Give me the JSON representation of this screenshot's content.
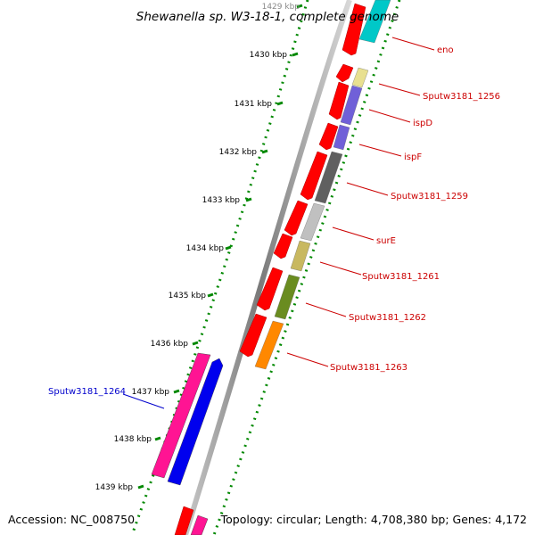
{
  "title": "Shewanella sp. W3-18-1, complete genome",
  "accession": "Accession: NC_008750",
  "summary": "Topology: circular; Length: 4,708,380 bp; Genes: 4,172",
  "ticks": [
    "1429 kbp",
    "1430 kbp",
    "1431 kbp",
    "1432 kbp",
    "1433 kbp",
    "1434 kbp",
    "1435 kbp",
    "1436 kbp",
    "1437 kbp",
    "1438 kbp",
    "1439 kbp"
  ],
  "genes": [
    {
      "label": "eno",
      "color": "#00c8c8",
      "label_color": "#cc0000"
    },
    {
      "label": "Sputw3181_1256",
      "color": "#e8e090",
      "label_color": "#cc0000"
    },
    {
      "label": "ispD",
      "color": "#7060d8",
      "label_color": "#cc0000"
    },
    {
      "label": "ispF",
      "color": "#7060d8",
      "label_color": "#cc0000"
    },
    {
      "label": "Sputw3181_1259",
      "color": "#606060",
      "label_color": "#cc0000"
    },
    {
      "label": "surE",
      "color": "#c0c0c0",
      "label_color": "#cc0000"
    },
    {
      "label": "Sputw3181_1261",
      "color": "#c8b860",
      "label_color": "#cc0000"
    },
    {
      "label": "Sputw3181_1262",
      "color": "#6a8c20",
      "label_color": "#cc0000"
    },
    {
      "label": "Sputw3181_1263",
      "color": "#ff8800",
      "label_color": "#cc0000"
    },
    {
      "label": "Sputw3181_1264",
      "color": "#0000ee",
      "label_color": "#0000cc"
    }
  ],
  "colors": {
    "cds": "#ff0000",
    "backbone": "#888888",
    "gc_skew": "#008800",
    "pink_cds": "#ff1493"
  }
}
